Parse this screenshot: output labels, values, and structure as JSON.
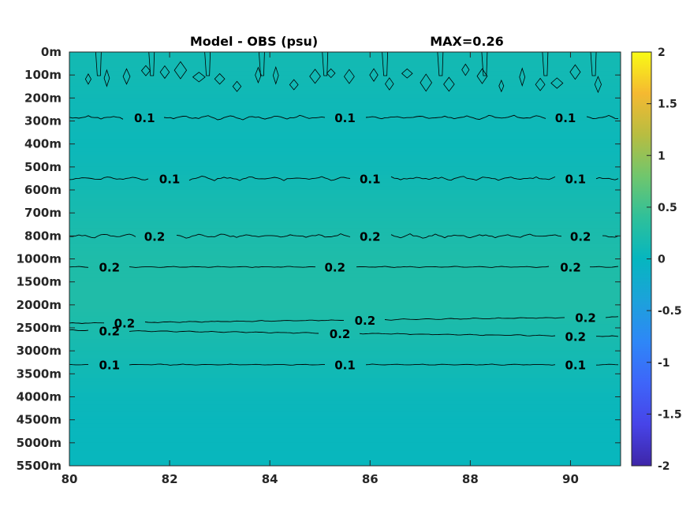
{
  "chart_data": {
    "type": "heatmap",
    "title": "Model - OBS (psu)",
    "max_label": "MAX=0.26",
    "x_ticks": [
      "80",
      "82",
      "84",
      "86",
      "88",
      "90"
    ],
    "x_range": [
      80,
      91
    ],
    "y_ticks": [
      "0m",
      "100m",
      "200m",
      "300m",
      "400m",
      "500m",
      "600m",
      "700m",
      "800m",
      "1000m",
      "1500m",
      "2000m",
      "2500m",
      "3000m",
      "3500m",
      "4000m",
      "4500m",
      "5000m",
      "5500m"
    ],
    "colorbar": {
      "ticks": [
        "2",
        "1.5",
        "1",
        "0.5",
        "0",
        "-0.5",
        "-1",
        "-1.5",
        "-2"
      ],
      "range": [
        -2,
        2
      ],
      "colormap": "parula"
    },
    "layers": [
      {
        "depth": "0m",
        "value": 0.13
      },
      {
        "depth": "100m",
        "value": 0.12
      },
      {
        "depth": "200m",
        "value": 0.09
      },
      {
        "depth": "300m",
        "value": 0.08
      },
      {
        "depth": "400m",
        "value": 0.06
      },
      {
        "depth": "500m",
        "value": 0.09
      },
      {
        "depth": "600m",
        "value": 0.14
      },
      {
        "depth": "700m",
        "value": 0.18
      },
      {
        "depth": "800m",
        "value": 0.21
      },
      {
        "depth": "1000m",
        "value": 0.24
      },
      {
        "depth": "1500m",
        "value": 0.25
      },
      {
        "depth": "2000m",
        "value": 0.25
      },
      {
        "depth": "2500m",
        "value": 0.2
      },
      {
        "depth": "3000m",
        "value": 0.15
      },
      {
        "depth": "3500m",
        "value": 0.1
      },
      {
        "depth": "4000m",
        "value": 0.05
      },
      {
        "depth": "4500m",
        "value": 0.03
      },
      {
        "depth": "5000m",
        "value": 0.02
      },
      {
        "depth": "5500m",
        "value": 0.02
      }
    ],
    "contours": [
      {
        "level": "0.1",
        "depth_index": 2.85,
        "labels_x": [
          81.5,
          85.5,
          89.9
        ]
      },
      {
        "level": "0.1",
        "depth_index": 5.5,
        "labels_x": [
          82.0,
          86.0,
          90.1
        ]
      },
      {
        "level": "0.2",
        "depth_index": 8.0,
        "labels_x": [
          81.7,
          86.0,
          90.2
        ]
      },
      {
        "level": "0.2",
        "depth_index": 9.35,
        "labels_x": [
          80.8,
          85.3,
          90.0
        ]
      },
      {
        "level": "0.2",
        "depth_index": 11.8,
        "labels_x": [
          81.1,
          85.9,
          90.3
        ]
      },
      {
        "level": "0.2",
        "depth_index": 12.1,
        "labels_x": [
          80.8,
          85.4,
          90.1
        ]
      },
      {
        "level": "0.1",
        "depth_index": 13.6,
        "labels_x": [
          80.8,
          85.5,
          90.1
        ]
      }
    ]
  }
}
